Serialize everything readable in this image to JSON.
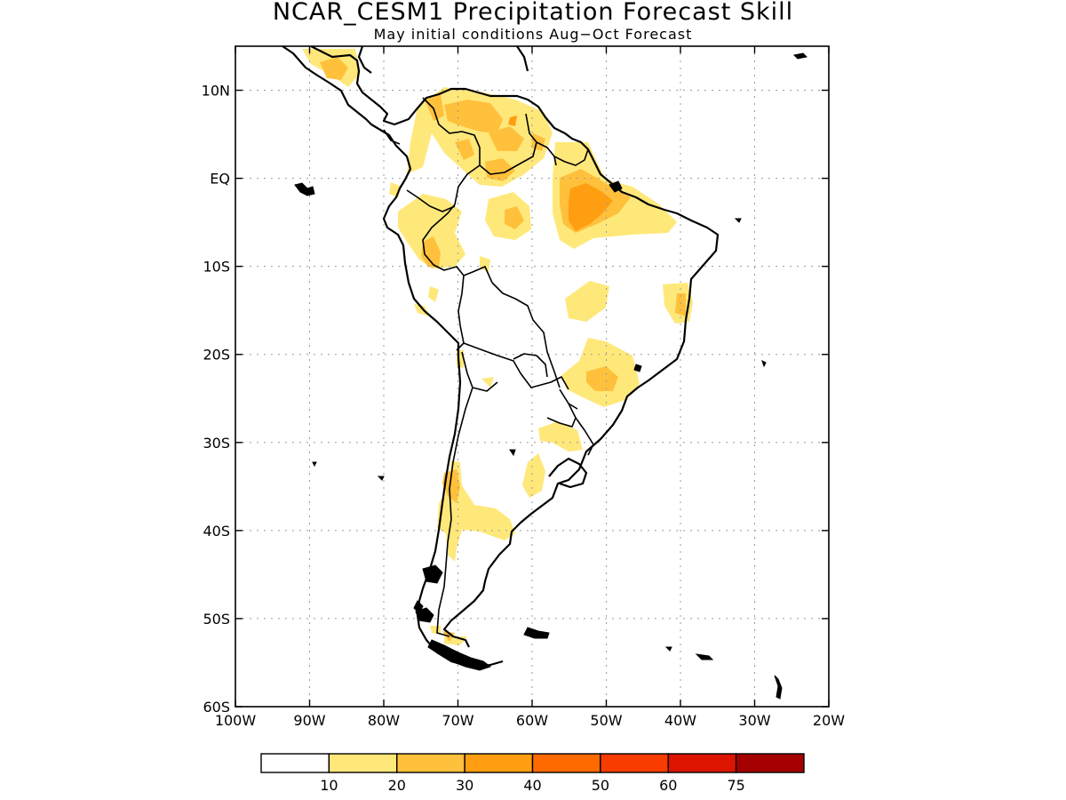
{
  "title": "NCAR_CESM1 Precipitation Forecast Skill",
  "subtitle": "May initial conditions  Aug−Oct Forecast",
  "map": {
    "lon_range": [
      -100,
      -20
    ],
    "lat_range": [
      -60,
      15
    ],
    "lon_ticks": [
      -100,
      -90,
      -80,
      -70,
      -60,
      -50,
      -40,
      -30,
      -20
    ],
    "lon_tick_labels": [
      "100W",
      "90W",
      "80W",
      "70W",
      "60W",
      "50W",
      "40W",
      "30W",
      "20W"
    ],
    "lat_ticks": [
      10,
      0,
      -10,
      -20,
      -30,
      -40,
      -50,
      -60
    ],
    "lat_tick_labels": [
      "10N",
      "EQ",
      "10S",
      "20S",
      "30S",
      "40S",
      "50S",
      "60S"
    ],
    "grid": "dotted"
  },
  "colorbar": {
    "labels": [
      "10",
      "20",
      "30",
      "40",
      "50",
      "60",
      "75"
    ],
    "colors": [
      "#ffffff",
      "#ffe87a",
      "#ffc03c",
      "#ff9e10",
      "#ff6a00",
      "#f83c00",
      "#dc1400",
      "#a50000"
    ]
  }
}
